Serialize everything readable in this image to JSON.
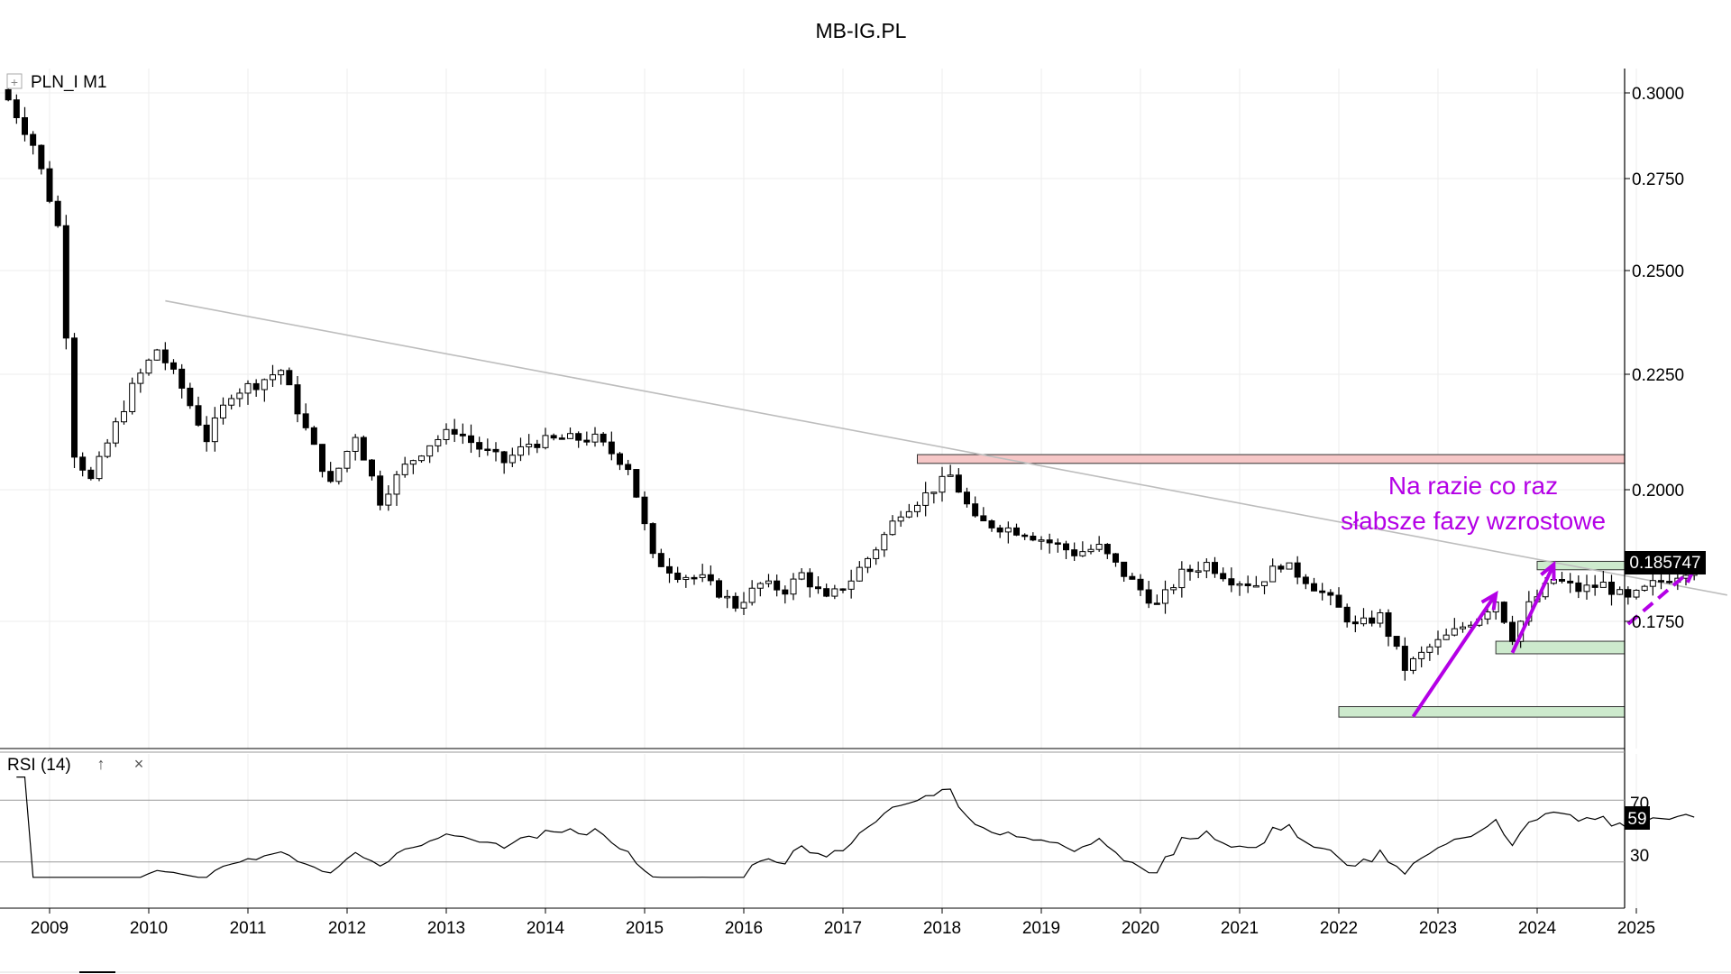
{
  "title": "MB-IG.PL",
  "instrument_label": "PLN_I M1",
  "expand_glyph": "+",
  "rsi_panel": {
    "label": "RSI (14)",
    "up_glyph": "↑",
    "close_glyph": "×",
    "last_value": "59",
    "level_labels": [
      "70",
      "30"
    ]
  },
  "annotation": {
    "line1": "Na razie co raz",
    "line2": "słabsze fazy wzrostowe",
    "color": "#b400e6"
  },
  "colors": {
    "up_candle": "#ffffff",
    "down_candle": "#000000",
    "trendline": "#bdbdbd",
    "resistance_zone": "#f6c7c7",
    "support_zone": "#cdeacd",
    "grid": "#eeeeee"
  },
  "chart_data": {
    "type": "candlestick",
    "timeframe": "monthly",
    "ylim": [
      0.1625,
      0.3025
    ],
    "y_ticks": [
      "0.3000",
      "0.2750",
      "0.2500",
      "0.2250",
      "0.2000",
      "0.1750"
    ],
    "x_ticks": [
      "2009",
      "2010",
      "2011",
      "2012",
      "2013",
      "2014",
      "2015",
      "2016",
      "2017",
      "2018",
      "2019",
      "2020",
      "2021",
      "2022",
      "2023",
      "2024",
      "2025"
    ],
    "last_price": "0.185747",
    "close_anchors": [
      [
        "2008-08",
        0.298
      ],
      [
        "2008-11",
        0.285
      ],
      [
        "2009-02",
        0.262
      ],
      [
        "2009-04",
        0.208
      ],
      [
        "2009-06",
        0.202
      ],
      [
        "2009-08",
        0.21
      ],
      [
        "2009-11",
        0.222
      ],
      [
        "2010-02",
        0.231
      ],
      [
        "2010-05",
        0.222
      ],
      [
        "2010-08",
        0.211
      ],
      [
        "2010-11",
        0.221
      ],
      [
        "2011-02",
        0.223
      ],
      [
        "2011-05",
        0.226
      ],
      [
        "2011-08",
        0.213
      ],
      [
        "2011-11",
        0.201
      ],
      [
        "2012-02",
        0.212
      ],
      [
        "2012-05",
        0.198
      ],
      [
        "2012-08",
        0.205
      ],
      [
        "2012-11",
        0.21
      ],
      [
        "2013-02",
        0.213
      ],
      [
        "2013-05",
        0.209
      ],
      [
        "2013-08",
        0.206
      ],
      [
        "2013-11",
        0.21
      ],
      [
        "2014-03",
        0.211
      ],
      [
        "2014-07",
        0.211
      ],
      [
        "2014-11",
        0.205
      ],
      [
        "2015-02",
        0.187
      ],
      [
        "2015-05",
        0.184
      ],
      [
        "2015-08",
        0.183
      ],
      [
        "2015-12",
        0.178
      ],
      [
        "2016-03",
        0.182
      ],
      [
        "2016-06",
        0.181
      ],
      [
        "2016-08",
        0.184
      ],
      [
        "2016-11",
        0.179
      ],
      [
        "2017-02",
        0.183
      ],
      [
        "2017-05",
        0.189
      ],
      [
        "2017-08",
        0.196
      ],
      [
        "2017-11",
        0.199
      ],
      [
        "2018-02",
        0.203
      ],
      [
        "2018-05",
        0.194
      ],
      [
        "2018-08",
        0.193
      ],
      [
        "2018-11",
        0.192
      ],
      [
        "2019-02",
        0.19
      ],
      [
        "2019-05",
        0.188
      ],
      [
        "2019-08",
        0.189
      ],
      [
        "2019-11",
        0.184
      ],
      [
        "2020-03",
        0.178
      ],
      [
        "2020-06",
        0.184
      ],
      [
        "2020-09",
        0.186
      ],
      [
        "2020-12",
        0.183
      ],
      [
        "2021-03",
        0.182
      ],
      [
        "2021-06",
        0.186
      ],
      [
        "2021-09",
        0.183
      ],
      [
        "2021-12",
        0.179
      ],
      [
        "2022-03",
        0.174
      ],
      [
        "2022-06",
        0.176
      ],
      [
        "2022-09",
        0.166
      ],
      [
        "2022-12",
        0.17
      ],
      [
        "2023-03",
        0.173
      ],
      [
        "2023-06",
        0.176
      ],
      [
        "2023-08",
        0.179
      ],
      [
        "2023-10",
        0.172
      ],
      [
        "2023-12",
        0.178
      ],
      [
        "2024-03",
        0.183
      ],
      [
        "2024-06",
        0.181
      ],
      [
        "2024-09",
        0.182
      ],
      [
        "2024-12",
        0.179
      ],
      [
        "2025-03",
        0.182
      ],
      [
        "2025-06",
        0.184
      ],
      [
        "2025-08",
        0.1857
      ]
    ],
    "resistance_zone": {
      "start": "2017-10",
      "end": "2025-12",
      "range": [
        0.2057,
        0.2076
      ]
    },
    "support_zones": [
      {
        "start": "2024-01",
        "end": "2025-12",
        "range": [
          0.1848,
          0.1864
        ]
      },
      {
        "start": "2023-08",
        "end": "2025-12",
        "range": [
          0.1688,
          0.1712
        ]
      },
      {
        "start": "2022-01",
        "end": "2025-12",
        "range": [
          0.1567,
          0.1587
        ]
      }
    ],
    "trendline": {
      "from": [
        "2010-03",
        0.2427
      ],
      "to": [
        "2025-12",
        0.18
      ]
    },
    "arrows": [
      {
        "from": [
          "2022-10",
          0.1568
        ],
        "to": [
          "2023-08",
          0.1802
        ],
        "style": "solid"
      },
      {
        "from": [
          "2023-10",
          0.169
        ],
        "to": [
          "2024-03",
          0.1858
        ],
        "style": "solid"
      },
      {
        "from": [
          "2024-12",
          0.1745
        ],
        "to": [
          "2025-08",
          0.1852
        ],
        "style": "dashed"
      }
    ],
    "rsi": {
      "ylim": [
        0,
        100
      ],
      "levels": [
        70,
        30
      ],
      "last": 59
    }
  }
}
